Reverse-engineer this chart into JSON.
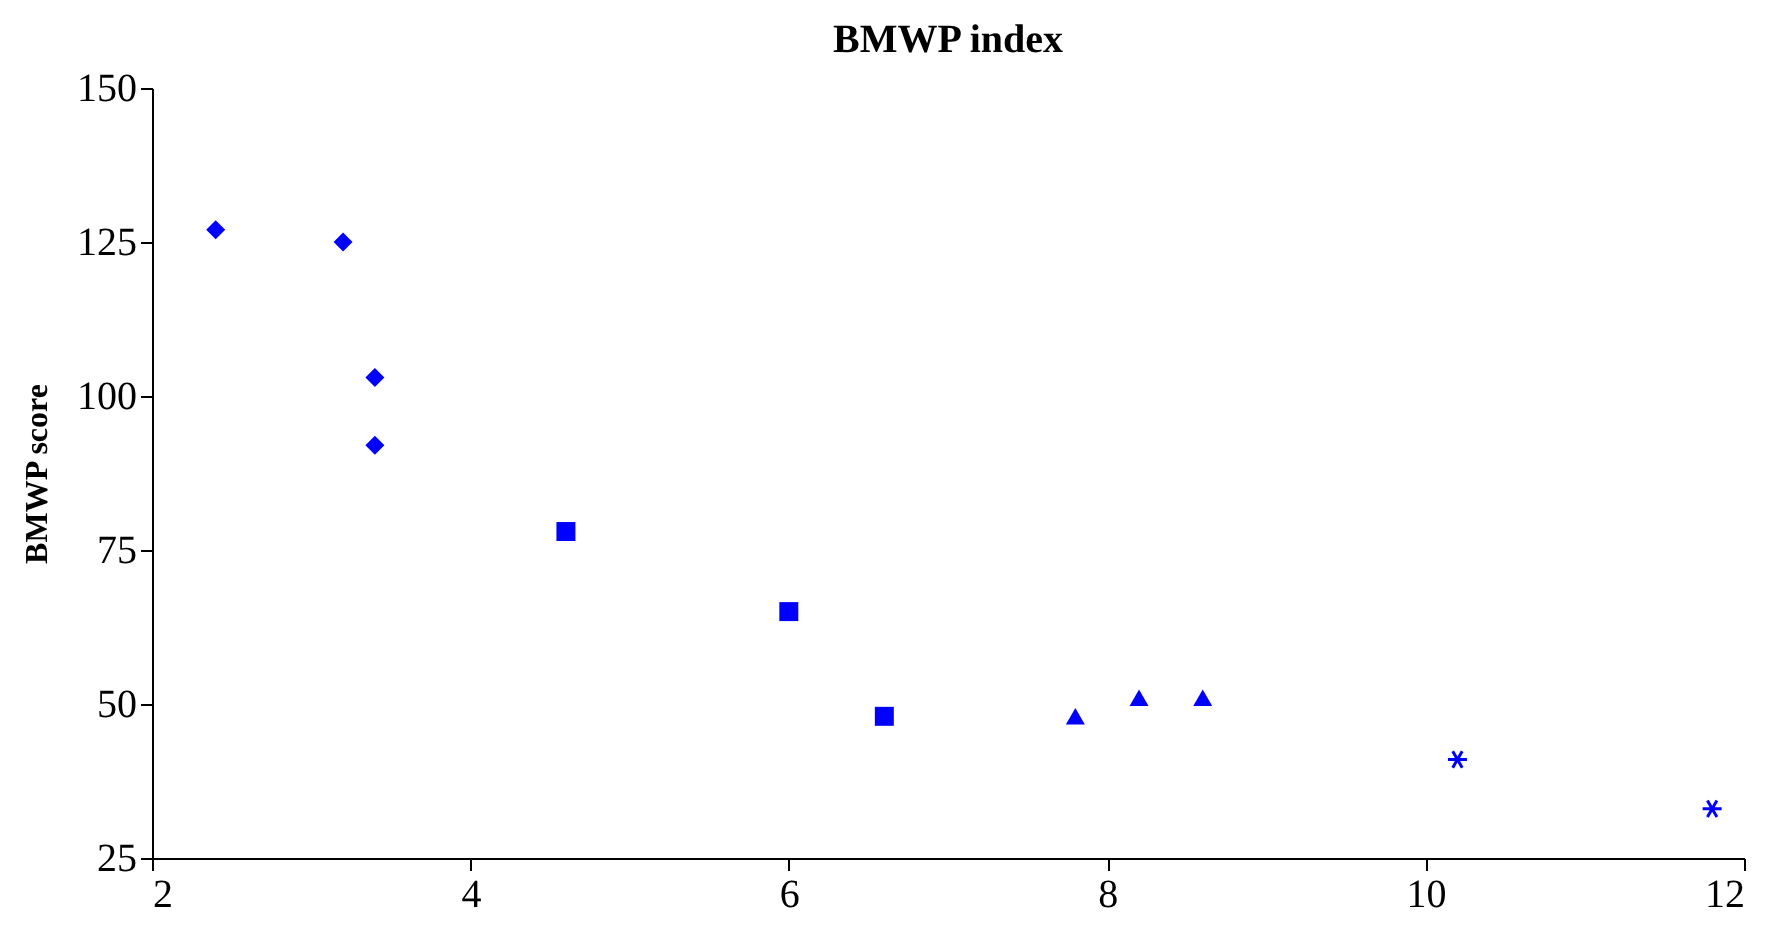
{
  "chart_data": {
    "type": "scatter",
    "title": "BMWP index",
    "ylabel": "BMWP score",
    "xlim": [
      2,
      12
    ],
    "xticks": [
      2,
      4,
      6,
      8,
      10,
      12
    ],
    "ylim": [
      25,
      150
    ],
    "yticks": [
      25,
      50,
      75,
      100,
      125,
      150
    ],
    "grid": false,
    "series": [
      {
        "color": "#0000ff",
        "marker": "diamond",
        "x": [
          2.4,
          3.2,
          3.4,
          3.4
        ],
        "values": [
          127,
          125,
          103,
          92
        ]
      },
      {
        "color": "#0000ff",
        "marker": "square",
        "x": [
          4.6,
          6.0,
          6.6
        ],
        "values": [
          78,
          65,
          48
        ]
      },
      {
        "color": "#0000ff",
        "marker": "triangle",
        "x": [
          7.8,
          8.2,
          8.6
        ],
        "values": [
          48,
          51,
          51
        ]
      },
      {
        "color": "#0000ff",
        "marker": "cross",
        "x": [
          10.2,
          11.8
        ],
        "values": [
          41,
          33
        ]
      }
    ]
  }
}
